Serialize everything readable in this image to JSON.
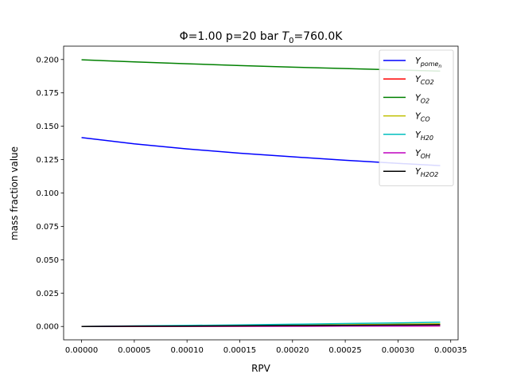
{
  "chart_data": {
    "type": "line",
    "title_parts": {
      "prefix": "Φ=1.00 p=20 bar ",
      "t": "T",
      "t_sub": "0",
      "suffix": "=760.0K"
    },
    "xlabel": "RPV",
    "ylabel": "mass fraction value",
    "xlim": [
      -1.7e-05,
      0.000357
    ],
    "ylim": [
      -0.01,
      0.21
    ],
    "xticks": [
      0,
      5e-05,
      0.0001,
      0.00015,
      0.0002,
      0.00025,
      0.0003,
      0.00035
    ],
    "xtick_labels": [
      "0.00000",
      "0.00005",
      "0.00010",
      "0.00015",
      "0.00020",
      "0.00025",
      "0.00030",
      "0.00035"
    ],
    "yticks": [
      0,
      0.025,
      0.05,
      0.075,
      0.1,
      0.125,
      0.15,
      0.175,
      0.2
    ],
    "ytick_labels": [
      "0.000",
      "0.025",
      "0.050",
      "0.075",
      "0.100",
      "0.125",
      "0.150",
      "0.175",
      "0.200"
    ],
    "grid": false,
    "legend_position": "top-right",
    "x": [
      0,
      5e-05,
      0.0001,
      0.00015,
      0.0002,
      0.00025,
      0.0003,
      0.00034
    ],
    "series": [
      {
        "name": "Y",
        "sub": "pome",
        "subsub": "n",
        "color": "#0000ff",
        "values": [
          0.1415,
          0.1368,
          0.133,
          0.1298,
          0.1271,
          0.1245,
          0.1222,
          0.1205
        ]
      },
      {
        "name": "Y",
        "sub": "CO2",
        "color": "#ff0000",
        "values": [
          0.0,
          5e-05,
          0.0001,
          0.00015,
          0.0002,
          0.00025,
          0.0003,
          0.0004
        ]
      },
      {
        "name": "Y",
        "sub": "O2",
        "color": "#008000",
        "values": [
          0.1998,
          0.1982,
          0.1968,
          0.1955,
          0.1943,
          0.1932,
          0.1922,
          0.1913
        ]
      },
      {
        "name": "Y",
        "sub": "CO",
        "color": "#bfbf00",
        "values": [
          0.0,
          0.0002,
          0.0004,
          0.0007,
          0.001,
          0.0013,
          0.0017,
          0.002
        ]
      },
      {
        "name": "Y",
        "sub": "H20",
        "color": "#00bfbf",
        "values": [
          0.0,
          0.0004,
          0.0008,
          0.0012,
          0.0017,
          0.0022,
          0.0027,
          0.0032
        ]
      },
      {
        "name": "Y",
        "sub": "OH",
        "color": "#bf00bf",
        "values": [
          0.0,
          0.0001,
          0.0001,
          0.0002,
          0.0002,
          0.0003,
          0.0003,
          0.0004
        ]
      },
      {
        "name": "Y",
        "sub": "H2O2",
        "color": "#000000",
        "values": [
          0.0,
          0.0002,
          0.0003,
          0.0005,
          0.0007,
          0.0009,
          0.0011,
          0.0013
        ]
      }
    ]
  }
}
